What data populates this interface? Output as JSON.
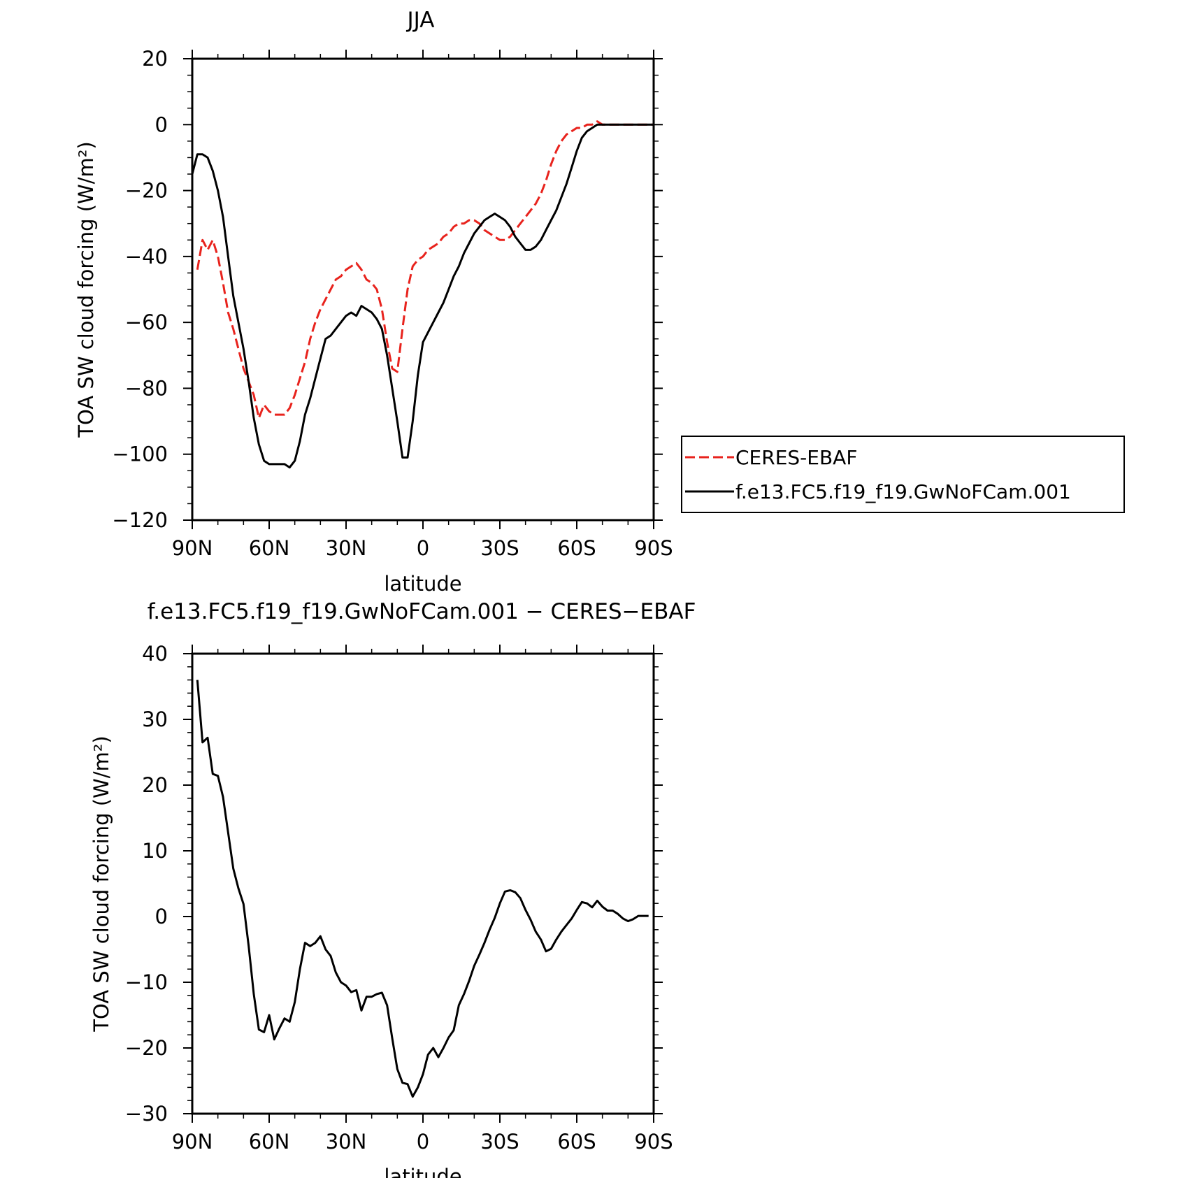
{
  "chart_data": [
    {
      "type": "line",
      "title": "JJA",
      "xlabel": "latitude",
      "ylabel": "TOA SW cloud forcing (W/m²)",
      "xlim": [
        90,
        -90
      ],
      "ylim": [
        -120,
        20
      ],
      "xticks": [
        90,
        60,
        30,
        0,
        -30,
        -60,
        -90
      ],
      "xtick_labels": [
        "90N",
        "60N",
        "30N",
        "0",
        "30S",
        "60S",
        "90S"
      ],
      "yticks": [
        -120,
        -100,
        -80,
        -60,
        -40,
        -20,
        0,
        20
      ],
      "ytick_labels": [
        "−120",
        "−100",
        "−80",
        "−60",
        "−40",
        "−20",
        "0",
        "20"
      ],
      "legend": "right, outside plot",
      "grid": false,
      "series": [
        {
          "name": "CERES-EBAF",
          "color": "#e8231d",
          "dash": "dashed",
          "x": [
            88,
            86,
            84,
            82,
            80,
            78,
            76,
            74,
            72,
            70,
            68,
            66,
            64,
            62,
            60,
            58,
            56,
            54,
            52,
            50,
            48,
            46,
            44,
            42,
            40,
            38,
            36,
            34,
            32,
            30,
            28,
            26,
            24,
            22,
            20,
            18,
            16,
            14,
            12,
            10,
            8,
            6,
            4,
            2,
            0,
            -2,
            -4,
            -6,
            -8,
            -10,
            -12,
            -14,
            -16,
            -18,
            -20,
            -22,
            -24,
            -26,
            -28,
            -30,
            -32,
            -34,
            -36,
            -38,
            -40,
            -42,
            -44,
            -46,
            -48,
            -50,
            -52,
            -54,
            -56,
            -58,
            -60,
            -62,
            -64,
            -66,
            -68,
            -70,
            -72,
            -74,
            -76,
            -78,
            -80,
            -82,
            -84,
            -86,
            -88,
            -90
          ],
          "values": [
            -44,
            -35,
            -38,
            -35,
            -40,
            -48,
            -57,
            -62,
            -68,
            -74,
            -78,
            -82,
            -89,
            -85,
            -87,
            -88,
            -88,
            -88,
            -86,
            -82,
            -77,
            -72,
            -65,
            -60,
            -56,
            -53,
            -50,
            -47,
            -46,
            -44,
            -43,
            -42,
            -44,
            -47,
            -48,
            -50,
            -56,
            -66,
            -74,
            -75,
            -62,
            -50,
            -43,
            -41,
            -40,
            -38,
            -37,
            -36,
            -34,
            -33,
            -31,
            -30,
            -30,
            -29,
            -29,
            -30,
            -32,
            -33,
            -34,
            -35,
            -35,
            -34,
            -32,
            -30,
            -28,
            -26,
            -24,
            -21,
            -17,
            -12,
            -8,
            -5,
            -3,
            -2,
            -1,
            -1,
            0,
            0,
            1,
            0,
            0,
            0,
            0,
            0,
            0,
            0,
            0,
            0,
            0,
            0
          ]
        },
        {
          "name": "f.e13.FC5.f19_f19.GwNoFCam.001",
          "color": "#000000",
          "dash": "solid",
          "x": [
            90,
            88,
            86,
            84,
            82,
            80,
            78,
            76,
            74,
            72,
            70,
            68,
            66,
            64,
            62,
            60,
            58,
            56,
            54,
            52,
            50,
            48,
            46,
            44,
            42,
            40,
            38,
            36,
            34,
            32,
            30,
            28,
            26,
            24,
            22,
            20,
            18,
            16,
            14,
            12,
            10,
            8,
            6,
            4,
            2,
            0,
            -2,
            -4,
            -6,
            -8,
            -10,
            -12,
            -14,
            -16,
            -18,
            -20,
            -22,
            -24,
            -26,
            -28,
            -30,
            -32,
            -34,
            -36,
            -38,
            -40,
            -42,
            -44,
            -46,
            -48,
            -50,
            -52,
            -54,
            -56,
            -58,
            -60,
            -62,
            -64,
            -66,
            -68,
            -70,
            -72,
            -74,
            -76,
            -78,
            -80,
            -82,
            -84,
            -86,
            -88,
            -90
          ],
          "values": [
            -15,
            -9,
            -9,
            -10,
            -14,
            -20,
            -28,
            -40,
            -52,
            -60,
            -68,
            -78,
            -89,
            -97,
            -102,
            -103,
            -103,
            -103,
            -103,
            -104,
            -102,
            -96,
            -88,
            -83,
            -77,
            -71,
            -65,
            -64,
            -62,
            -60,
            -58,
            -57,
            -58,
            -55,
            -56,
            -57,
            -59,
            -62,
            -70,
            -80,
            -90,
            -101,
            -101,
            -90,
            -76,
            -66,
            -63,
            -60,
            -57,
            -54,
            -50,
            -46,
            -43,
            -39,
            -36,
            -33,
            -31,
            -29,
            -28,
            -27,
            -28,
            -29,
            -31,
            -34,
            -36,
            -38,
            -38,
            -37,
            -35,
            -32,
            -29,
            -26,
            -22,
            -18,
            -13,
            -8,
            -4,
            -2,
            -1,
            0,
            0,
            0,
            0,
            0,
            0,
            0,
            0,
            0,
            0,
            0,
            0
          ]
        }
      ]
    },
    {
      "type": "line",
      "title": "f.e13.FC5.f19_f19.GwNoFCam.001 − CERES−EBAF",
      "xlabel": "latitude",
      "ylabel": "TOA SW cloud forcing (W/m²)",
      "xlim": [
        90,
        -90
      ],
      "ylim": [
        -30,
        40
      ],
      "xticks": [
        90,
        60,
        30,
        0,
        -30,
        -60,
        -90
      ],
      "xtick_labels": [
        "90N",
        "60N",
        "30N",
        "0",
        "30S",
        "60S",
        "90S"
      ],
      "yticks": [
        -30,
        -20,
        -10,
        0,
        10,
        20,
        30,
        40
      ],
      "ytick_labels": [
        "−30",
        "−20",
        "−10",
        "0",
        "10",
        "20",
        "30",
        "40"
      ],
      "grid": false,
      "series": [
        {
          "color": "#000000",
          "dash": "solid",
          "x": [
            88,
            86,
            84,
            82,
            80,
            78,
            76,
            74,
            72,
            70,
            68,
            66,
            64,
            62,
            60,
            58,
            56,
            54,
            52,
            50,
            48,
            46,
            44,
            42,
            40,
            38,
            36,
            34,
            32,
            30,
            28,
            26,
            24,
            22,
            20,
            18,
            16,
            14,
            12,
            10,
            8,
            6,
            4,
            2,
            0,
            -2,
            -4,
            -6,
            -8,
            -10,
            -12,
            -14,
            -16,
            -18,
            -20,
            -22,
            -24,
            -26,
            -28,
            -30,
            -32,
            -34,
            -36,
            -38,
            -40,
            -42,
            -44,
            -46,
            -48,
            -50,
            -52,
            -54,
            -56,
            -58,
            -60,
            -62,
            -64,
            -66,
            -68,
            -70,
            -72,
            -74,
            -76,
            -78,
            -80,
            -82,
            -84,
            -86,
            -88
          ],
          "values": [
            36,
            26.5,
            27.2,
            21.7,
            21.4,
            18.2,
            12.8,
            7.3,
            4.3,
            1.9,
            -4.5,
            -11.8,
            -17.2,
            -17.6,
            -15.0,
            -18.7,
            -17.0,
            -15.5,
            -16.0,
            -13.0,
            -8.0,
            -4.0,
            -4.5,
            -4.0,
            -3.0,
            -5.0,
            -6.0,
            -8.5,
            -10.0,
            -10.5,
            -11.5,
            -11.2,
            -14.3,
            -12.2,
            -12.2,
            -11.8,
            -11.6,
            -13.5,
            -18.5,
            -23.2,
            -25.3,
            -25.5,
            -27.4,
            -26.0,
            -24.0,
            -21.0,
            -20.0,
            -21.4,
            -20.0,
            -18.4,
            -17.3,
            -13.5,
            -11.8,
            -9.8,
            -7.5,
            -5.8,
            -4.0,
            -2.0,
            -0.2,
            2.0,
            3.8,
            4.0,
            3.7,
            2.8,
            1.0,
            -0.5,
            -2.3,
            -3.5,
            -5.3,
            -4.9,
            -3.5,
            -2.3,
            -1.3,
            -0.3,
            1.0,
            2.2,
            2.0,
            1.4,
            2.4,
            1.5,
            0.9,
            0.9,
            0.4,
            -0.3,
            -0.7,
            -0.4,
            0.1,
            0.1,
            0.1
          ]
        }
      ]
    }
  ]
}
